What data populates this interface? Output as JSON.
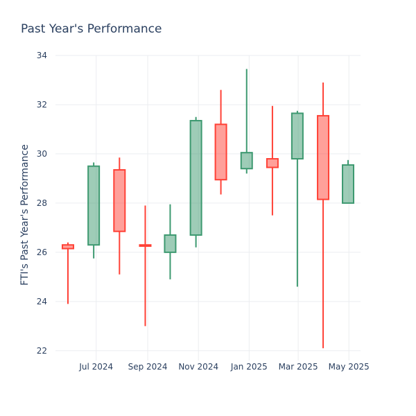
{
  "chart_data": {
    "type": "candlestick",
    "title": "Past Year's Performance",
    "xlabel": "",
    "ylabel": "FTI's Past Year's Performance",
    "ylim": [
      21.6,
      34.0
    ],
    "y_ticks": [
      22,
      24,
      26,
      28,
      30,
      32,
      34
    ],
    "x_tick_labels": [
      "Jul 2024",
      "Sep 2024",
      "Nov 2024",
      "Jan 2025",
      "Mar 2025",
      "May 2025"
    ],
    "grid": true,
    "legend": "none",
    "colors": {
      "increasing": "#3d9970",
      "decreasing": "#ff4136"
    },
    "candles": [
      {
        "date": "2024-05-28",
        "open": 26.3,
        "high": 26.4,
        "low": 23.9,
        "close": 26.15,
        "direction": "decreasing"
      },
      {
        "date": "2024-06-28",
        "open": 26.3,
        "high": 29.65,
        "low": 25.75,
        "close": 29.5,
        "direction": "increasing"
      },
      {
        "date": "2024-07-29",
        "open": 29.35,
        "high": 29.85,
        "low": 25.1,
        "close": 26.85,
        "direction": "decreasing"
      },
      {
        "date": "2024-08-29",
        "open": 26.3,
        "high": 27.9,
        "low": 23.0,
        "close": 26.25,
        "direction": "decreasing"
      },
      {
        "date": "2024-09-28",
        "open": 26.0,
        "high": 27.95,
        "low": 24.9,
        "close": 26.7,
        "direction": "increasing"
      },
      {
        "date": "2024-10-29",
        "open": 26.7,
        "high": 31.5,
        "low": 26.2,
        "close": 31.35,
        "direction": "increasing"
      },
      {
        "date": "2024-11-28",
        "open": 31.2,
        "high": 32.6,
        "low": 28.35,
        "close": 28.95,
        "direction": "decreasing"
      },
      {
        "date": "2024-12-29",
        "open": 29.4,
        "high": 33.45,
        "low": 29.2,
        "close": 30.05,
        "direction": "increasing"
      },
      {
        "date": "2025-01-29",
        "open": 29.8,
        "high": 31.95,
        "low": 27.5,
        "close": 29.45,
        "direction": "decreasing"
      },
      {
        "date": "2025-02-28",
        "open": 29.8,
        "high": 31.75,
        "low": 24.6,
        "close": 31.65,
        "direction": "increasing"
      },
      {
        "date": "2025-03-31",
        "open": 31.55,
        "high": 32.9,
        "low": 22.1,
        "close": 28.15,
        "direction": "decreasing"
      },
      {
        "date": "2025-04-30",
        "open": 28.0,
        "high": 29.75,
        "low": 28.0,
        "close": 29.55,
        "direction": "increasing"
      }
    ]
  }
}
